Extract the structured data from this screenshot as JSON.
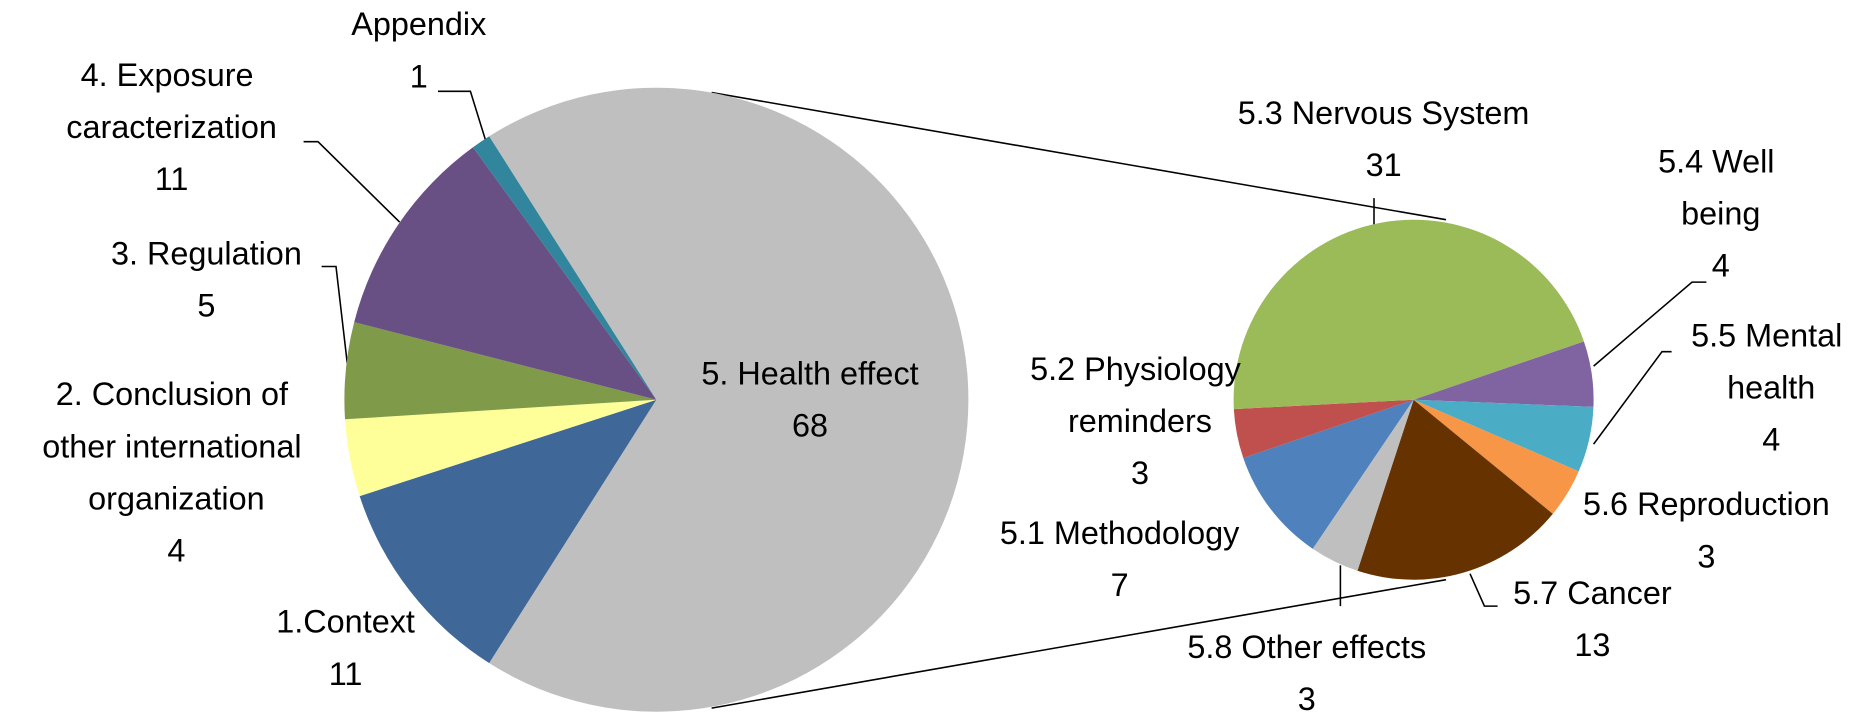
{
  "chart_data": [
    {
      "type": "pie",
      "categories": [
        "1.Context",
        "2. Conclusion of other international organization",
        "3. Regulation",
        "4. Exposure caracterization",
        "Appendix",
        "5. Health effect"
      ],
      "values": [
        11,
        4,
        5,
        11,
        1,
        68
      ],
      "colors": [
        "#3f6898",
        "#ffff99",
        "#7f9a48",
        "#684f84",
        "#31859c",
        "#bfbfbf"
      ]
    },
    {
      "type": "pie",
      "categories": [
        "5.1 Methodology",
        "5.2 Physiology reminders",
        "5.3 Nervous System",
        "5.4 Well being",
        "5.5 Mental health",
        "5.6 Reproduction",
        "5.7 Cancer",
        "5.8 Other effects"
      ],
      "values": [
        7,
        3,
        31,
        4,
        4,
        3,
        13,
        3
      ],
      "colors": [
        "#4f81bd",
        "#c0504d",
        "#9bbb59",
        "#8064a2",
        "#4bacc6",
        "#f79646",
        "#663300",
        "#bfbfbf"
      ]
    }
  ]
}
